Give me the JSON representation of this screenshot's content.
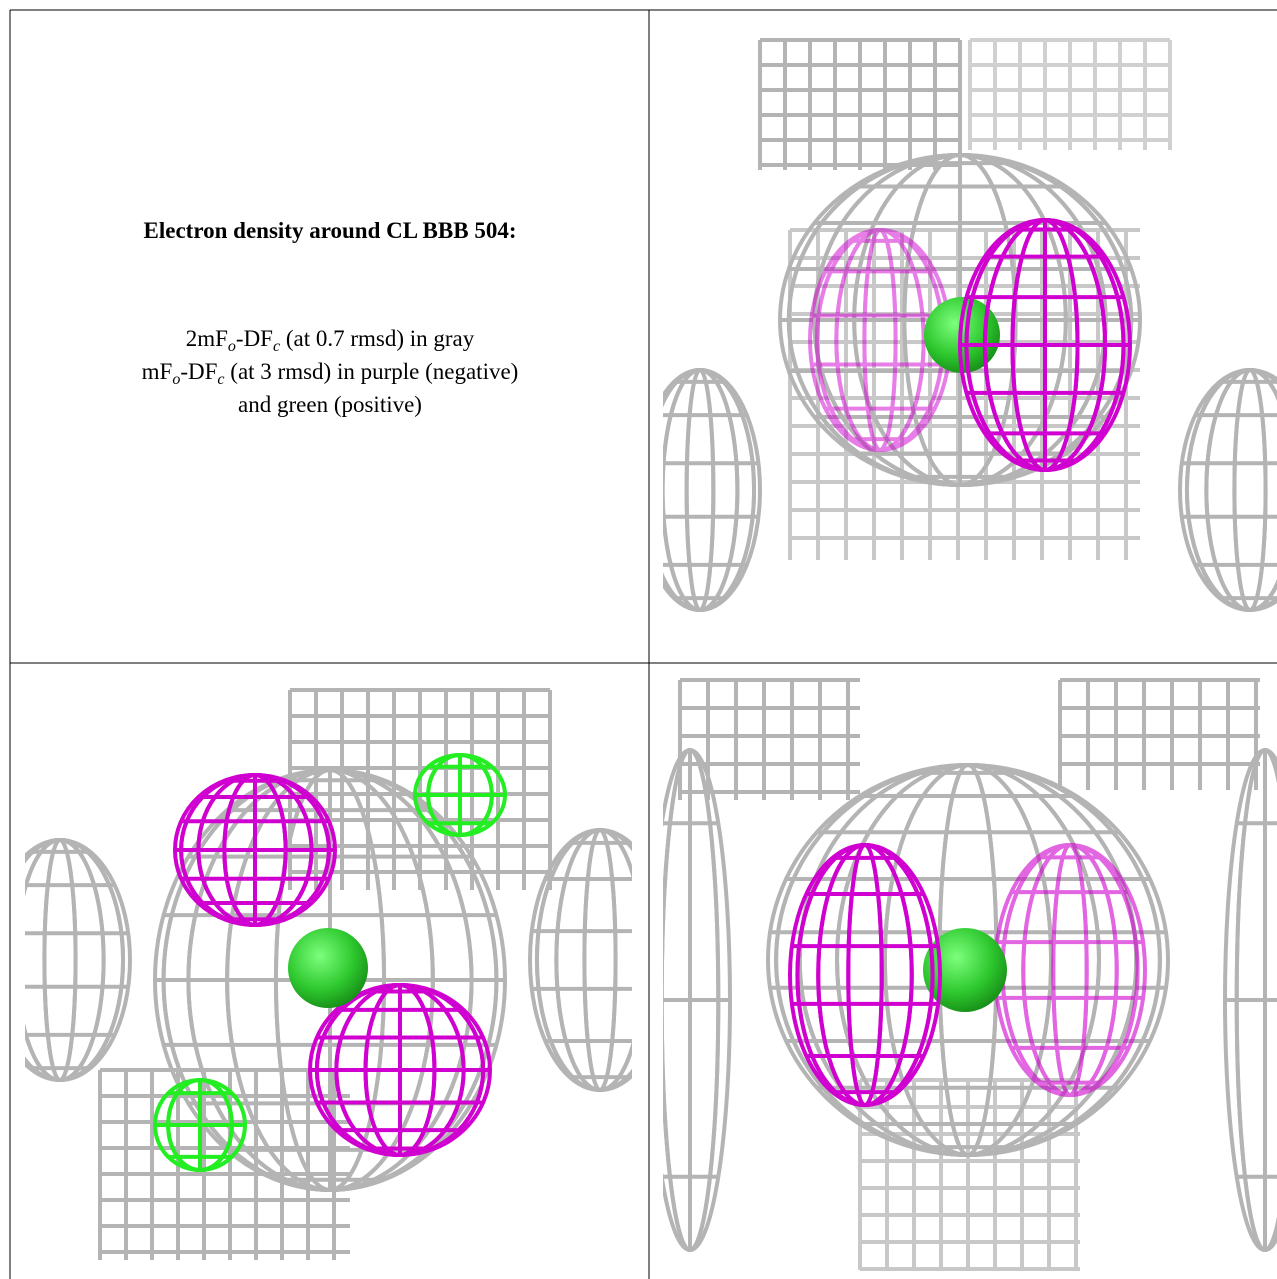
{
  "caption": {
    "title": "Electron density around CL BBB 504:",
    "lines": [
      [
        "2mF",
        "o",
        "-DF",
        "c",
        " (at 0.7 rmsd) in gray"
      ],
      [
        "mF",
        "o",
        "-DF",
        "c",
        " (at 3 rmsd) in purple (negative)"
      ],
      [
        "and green (positive)"
      ]
    ]
  }
}
